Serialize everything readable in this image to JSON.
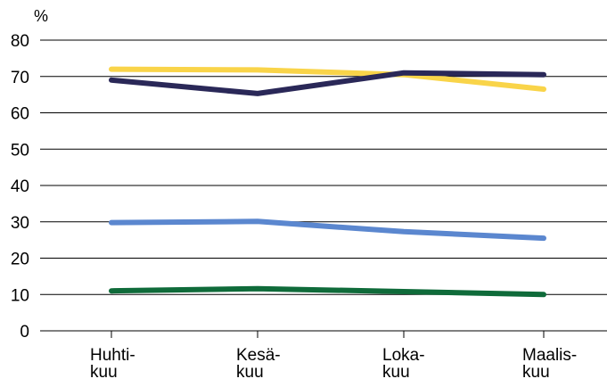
{
  "chart_data": {
    "type": "line",
    "unit": "%",
    "categories": [
      [
        "Huhti-",
        "kuu"
      ],
      [
        "Kesä-",
        "kuu"
      ],
      [
        "Loka-",
        "kuu"
      ],
      [
        "Maalis-",
        "kuu"
      ]
    ],
    "ylim": [
      0,
      80
    ],
    "yticks": [
      0,
      10,
      20,
      30,
      40,
      50,
      60,
      70,
      80
    ],
    "grid": true,
    "series": [
      {
        "color": "#f9d449",
        "values": [
          72,
          71.8,
          70.5,
          66.5
        ]
      },
      {
        "color": "#2a2858",
        "values": [
          69,
          65.3,
          71,
          70.5
        ]
      },
      {
        "color": "#5b87cf",
        "values": [
          29.8,
          30.1,
          27.3,
          25.5
        ]
      },
      {
        "color": "#0f6b3a",
        "values": [
          11,
          11.6,
          10.8,
          10
        ]
      }
    ]
  }
}
